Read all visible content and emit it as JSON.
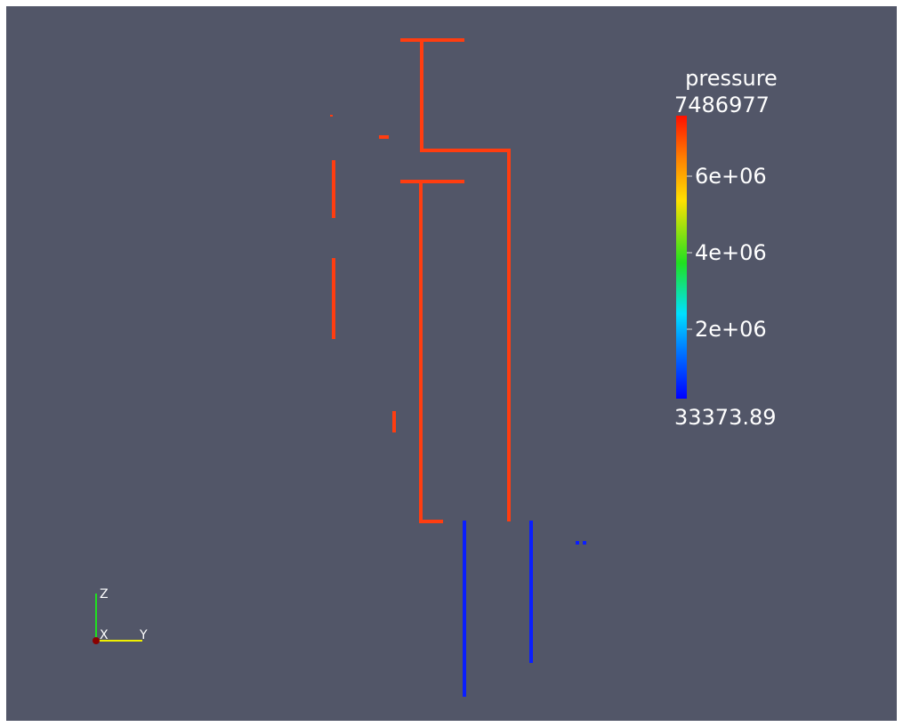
{
  "colorbar": {
    "title": "pressure",
    "max_label": "7486977",
    "ticks": [
      "6e+06",
      "4e+06",
      "2e+06"
    ],
    "min_label": "33373.89"
  },
  "axes": {
    "z": "Z",
    "x": "X",
    "y": "Y"
  }
}
